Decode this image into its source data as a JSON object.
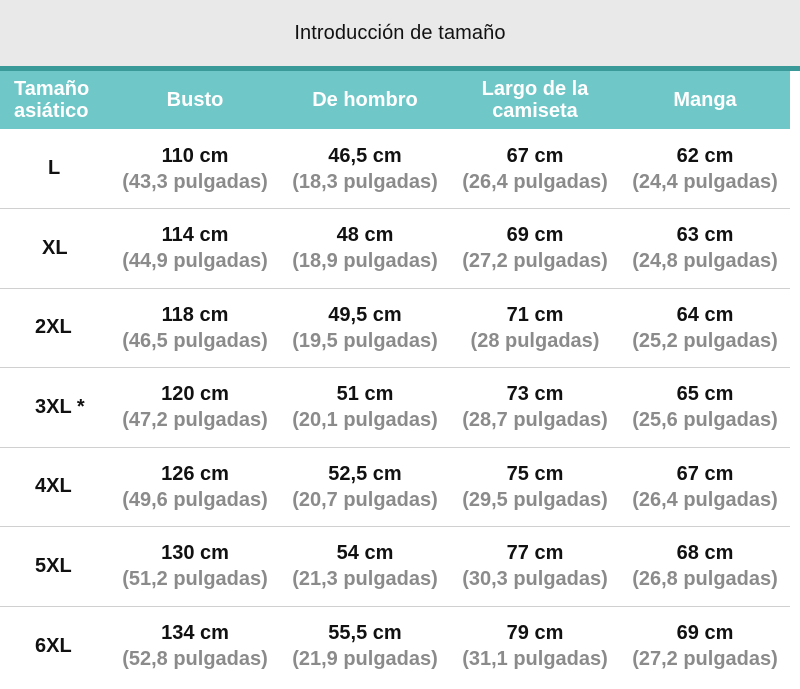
{
  "title": "Introducción de tamaño",
  "colors": {
    "header_bg": "#6fc7c7",
    "accent_line": "#3a9a99",
    "title_bg": "#e9e9e9",
    "inch_text": "#8b8b8b"
  },
  "columns": {
    "size_line1": "Tamaño",
    "size_line2": "asiático",
    "bust": "Busto",
    "shoulder": "De hombro",
    "length_line1": "Largo de la",
    "length_line2": "camiseta",
    "sleeve": "Manga"
  },
  "rows": [
    {
      "size": "L",
      "bust_cm": "110 cm",
      "bust_in": "(43,3 pulgadas)",
      "shoulder_cm": "46,5 cm",
      "shoulder_in": "(18,3 pulgadas)",
      "length_cm": "67 cm",
      "length_in": "(26,4 pulgadas)",
      "sleeve_cm": "62 cm",
      "sleeve_in": "(24,4 pulgadas)"
    },
    {
      "size": "XL",
      "bust_cm": "114 cm",
      "bust_in": "(44,9 pulgadas)",
      "shoulder_cm": "48 cm",
      "shoulder_in": "(18,9 pulgadas)",
      "length_cm": "69 cm",
      "length_in": "(27,2 pulgadas)",
      "sleeve_cm": "63 cm",
      "sleeve_in": "(24,8 pulgadas)"
    },
    {
      "size": "2XL",
      "bust_cm": "118 cm",
      "bust_in": "(46,5 pulgadas)",
      "shoulder_cm": "49,5 cm",
      "shoulder_in": "(19,5 pulgadas)",
      "length_cm": "71 cm",
      "length_in": "(28 pulgadas)",
      "sleeve_cm": "64 cm",
      "sleeve_in": "(25,2 pulgadas)"
    },
    {
      "size": "3XL *",
      "bust_cm": "120 cm",
      "bust_in": "(47,2 pulgadas)",
      "shoulder_cm": "51 cm",
      "shoulder_in": "(20,1 pulgadas)",
      "length_cm": "73 cm",
      "length_in": "(28,7 pulgadas)",
      "sleeve_cm": "65 cm",
      "sleeve_in": "(25,6 pulgadas)"
    },
    {
      "size": "4XL",
      "bust_cm": "126 cm",
      "bust_in": "(49,6 pulgadas)",
      "shoulder_cm": "52,5 cm",
      "shoulder_in": "(20,7 pulgadas)",
      "length_cm": "75 cm",
      "length_in": "(29,5 pulgadas)",
      "sleeve_cm": "67 cm",
      "sleeve_in": "(26,4 pulgadas)"
    },
    {
      "size": "5XL",
      "bust_cm": "130 cm",
      "bust_in": "(51,2 pulgadas)",
      "shoulder_cm": "54 cm",
      "shoulder_in": "(21,3 pulgadas)",
      "length_cm": "77 cm",
      "length_in": "(30,3 pulgadas)",
      "sleeve_cm": "68 cm",
      "sleeve_in": "(26,8 pulgadas)"
    },
    {
      "size": "6XL",
      "bust_cm": "134 cm",
      "bust_in": "(52,8 pulgadas)",
      "shoulder_cm": "55,5 cm",
      "shoulder_in": "(21,9 pulgadas)",
      "length_cm": "79 cm",
      "length_in": "(31,1 pulgadas)",
      "sleeve_cm": "69 cm",
      "sleeve_in": "(27,2 pulgadas)"
    }
  ]
}
